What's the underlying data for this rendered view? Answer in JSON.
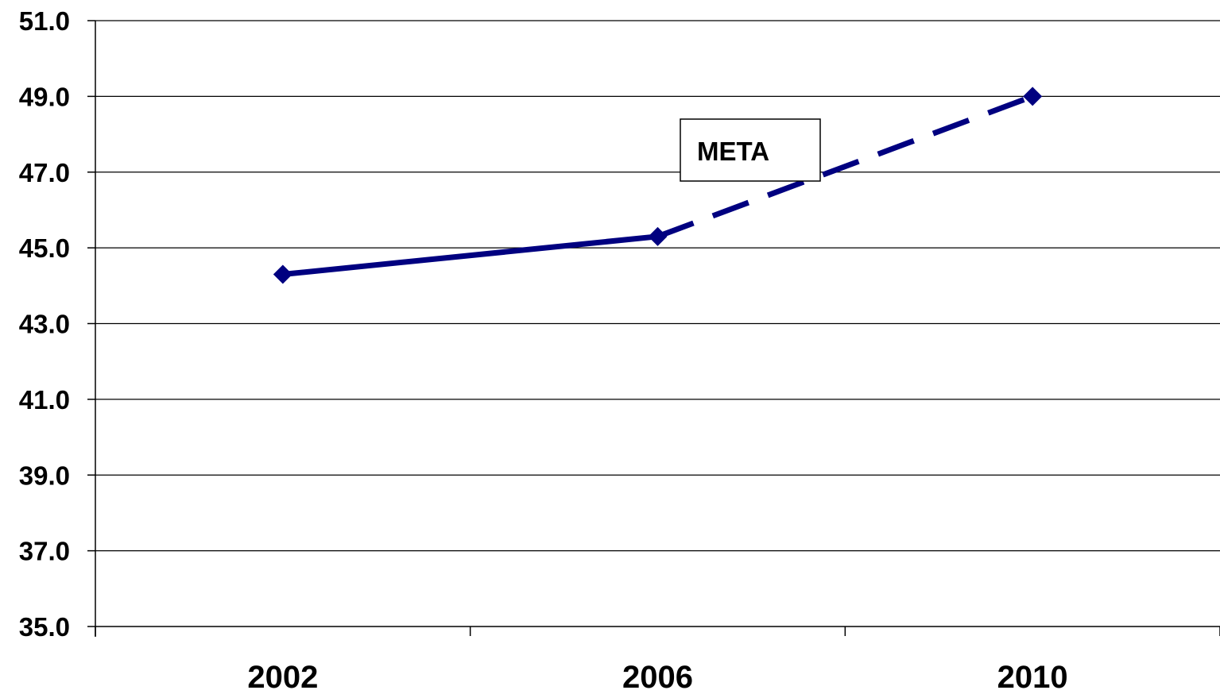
{
  "chart_data": {
    "type": "line",
    "categories": [
      "2002",
      "2006",
      "2010"
    ],
    "series": [
      {
        "values": [
          44.3,
          45.3,
          49.0
        ],
        "color": "#000080",
        "segment_styles": [
          "solid",
          "dashed"
        ],
        "marker": "diamond"
      }
    ],
    "ylim": [
      35.0,
      51.0
    ],
    "y_ticks": [
      "35.0",
      "37.0",
      "39.0",
      "41.0",
      "43.0",
      "45.0",
      "47.0",
      "49.0",
      "51.0"
    ],
    "grid": "horizontal",
    "annotation": {
      "text": "META"
    }
  }
}
